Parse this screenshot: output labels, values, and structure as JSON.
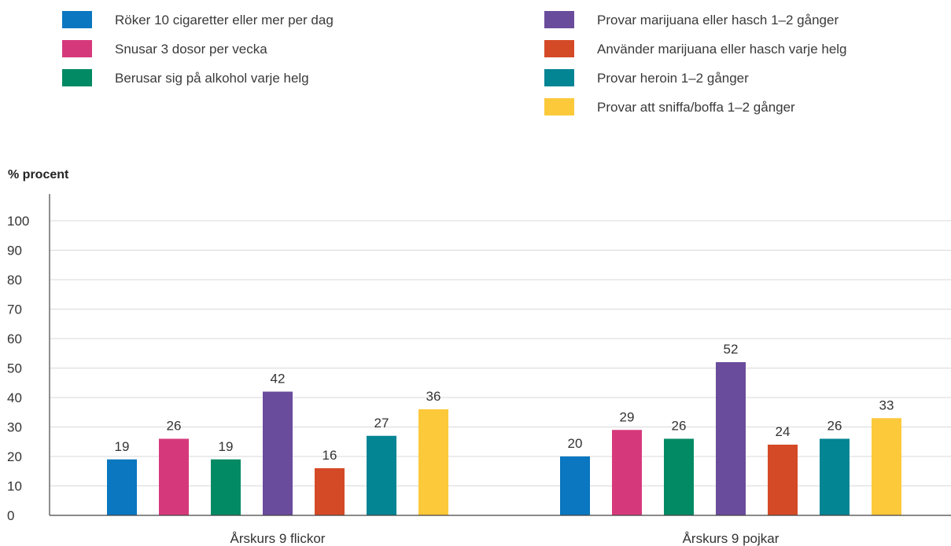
{
  "chart_data": {
    "type": "bar",
    "ylabel": "% procent",
    "ylim": [
      0,
      100
    ],
    "yticks": [
      0,
      10,
      20,
      30,
      40,
      50,
      60,
      70,
      80,
      90,
      100
    ],
    "grid": true,
    "legend_position": "top",
    "categories": [
      "Årskurs 9 flickor",
      "Årskurs 9 pojkar"
    ],
    "series": [
      {
        "name": "Röker 10 cigaretter eller mer per dag",
        "color": "#0a77c0",
        "values": [
          19,
          20
        ]
      },
      {
        "name": "Snusar 3 dosor per vecka",
        "color": "#d6397b",
        "values": [
          26,
          29
        ]
      },
      {
        "name": "Berusar sig på alkohol varje helg",
        "color": "#018a64",
        "values": [
          19,
          26
        ]
      },
      {
        "name": "Provar marijuana eller hasch 1–2 gånger",
        "color": "#6a4c9c",
        "values": [
          42,
          52
        ]
      },
      {
        "name": "Använder marijuana eller hasch varje helg",
        "color": "#d44a27",
        "values": [
          16,
          24
        ]
      },
      {
        "name": "Provar heroin 1–2 gånger",
        "color": "#048593",
        "values": [
          27,
          26
        ]
      },
      {
        "name": "Provar att sniffa/boffa 1–2 gånger",
        "color": "#fcc93b",
        "values": [
          36,
          33
        ]
      }
    ]
  }
}
